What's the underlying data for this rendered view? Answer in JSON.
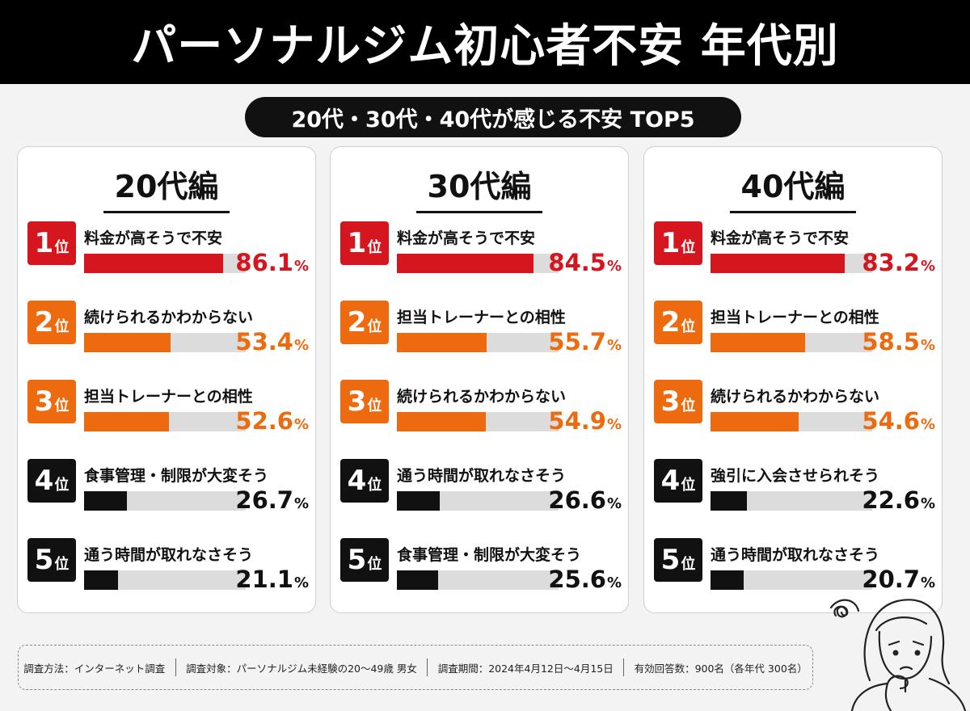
{
  "title": "パーソナルジム初心者不安 年代別",
  "subtitle": "20代・30代・40代が感じる不安 TOP5",
  "rank_unit": "位",
  "percent_sign": "%",
  "colors": {
    "red": "#d6161e",
    "orange": "#ee6a0f",
    "black": "#111111",
    "track": "#dcdcdc"
  },
  "chart_data": [
    {
      "type": "bar",
      "title": "20代編",
      "ylim": [
        0,
        100
      ],
      "ranks": [
        "1",
        "2",
        "3",
        "4",
        "5"
      ],
      "categories": [
        "料金が高そうで不安",
        "続けられるかわからない",
        "担当トレーナーとの相性",
        "食事管理・制限が大変そう",
        "通う時間が取れなさそう"
      ],
      "values": [
        86.1,
        53.4,
        52.6,
        26.7,
        21.1
      ],
      "value_labels": [
        "86.1",
        "53.4",
        "52.6",
        "26.7",
        "21.1"
      ]
    },
    {
      "type": "bar",
      "title": "30代編",
      "ylim": [
        0,
        100
      ],
      "ranks": [
        "1",
        "2",
        "3",
        "4",
        "5"
      ],
      "categories": [
        "料金が高そうで不安",
        "担当トレーナーとの相性",
        "続けられるかわからない",
        "通う時間が取れなさそう",
        "食事管理・制限が大変そう"
      ],
      "values": [
        84.5,
        55.7,
        54.9,
        26.6,
        25.6
      ],
      "value_labels": [
        "84.5",
        "55.7",
        "54.9",
        "26.6",
        "25.6"
      ]
    },
    {
      "type": "bar",
      "title": "40代編",
      "ylim": [
        0,
        100
      ],
      "ranks": [
        "1",
        "2",
        "3",
        "4",
        "5"
      ],
      "categories": [
        "料金が高そうで不安",
        "担当トレーナーとの相性",
        "続けられるかわからない",
        "強引に入会させられそう",
        "通う時間が取れなさそう"
      ],
      "values": [
        83.2,
        58.5,
        54.6,
        22.6,
        20.7
      ],
      "value_labels": [
        "83.2",
        "58.5",
        "54.6",
        "22.6",
        "20.7"
      ]
    }
  ],
  "footer": {
    "method": "調査方法：インターネット調査",
    "target": "調査対象：パーソナルジム未経験の20～49歳 男女",
    "period": "調査期間：2024年4月12日～4月15日",
    "responses": "有効回答数：900名（各年代 300名）"
  },
  "illustration_icon": "worried-woman-icon"
}
